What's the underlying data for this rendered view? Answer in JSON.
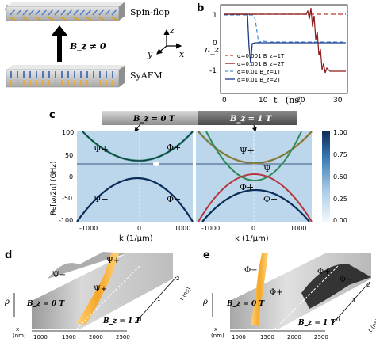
{
  "panel_a": {
    "label": "a",
    "top_layer": "Spin-flop",
    "bottom_layer": "SyAFM",
    "field": "B_z ≠ 0",
    "axes": {
      "z": "z",
      "y": "y",
      "x": "x"
    }
  },
  "panel_b": {
    "label": "b",
    "ylabel": "n_z",
    "xlabel": "t   (ns)",
    "yticks": [
      "1",
      "0",
      "-1"
    ],
    "xticks": [
      "0",
      "10",
      "20",
      "30"
    ],
    "legend": [
      {
        "label": "α=0.001  B_z=1T",
        "color": "#c0392b",
        "dash": "6 3"
      },
      {
        "label": "α=0.001  B_z=2T",
        "color": "#8b1a1a",
        "dash": ""
      },
      {
        "label": "α=0.01   B_z=1T",
        "color": "#4a90d9",
        "dash": "6 3"
      },
      {
        "label": "α=0.01   B_z=2T",
        "color": "#1f3c88",
        "dash": ""
      }
    ]
  },
  "panel_c": {
    "label": "c",
    "header_left": "B_z = 0 T",
    "header_right": "B_z = 1 T",
    "ylabel": "Re[ω/2π] (GHz)",
    "xlabel": "k (1/μm)",
    "yticks": [
      "100",
      "50",
      "0",
      "-50",
      "-100"
    ],
    "xticks": [
      "-1000",
      "0",
      "1000"
    ],
    "colorbar_ticks": [
      "1.00",
      "0.75",
      "0.50",
      "0.25",
      "0.00"
    ],
    "left_labels": {
      "psi_plus": "Ψ+",
      "phi_plus": "Φ+",
      "psi_minus": "Ψ−",
      "phi_minus": "Φ−"
    },
    "right_labels": {
      "psi_plus": "Ψ+",
      "psi_minus": "Ψ−",
      "phi_plus": "Φ+",
      "phi_minus": "Φ−"
    }
  },
  "panel_d": {
    "label": "d",
    "ylabel": "ρ",
    "xlabel": "x\n(nm)",
    "xticks": [
      "1000",
      "1500",
      "2000",
      "2500"
    ],
    "tlabel": "t (ns)",
    "tticks": [
      "0",
      "1",
      "2"
    ],
    "region_left": "B_z = 0 T",
    "region_right": "B_z = 1 T",
    "labels": {
      "psi_minus": "Ψ−",
      "psi_plus_top": "Ψ+",
      "psi_plus": "Ψ+"
    }
  },
  "panel_e": {
    "label": "e",
    "ylabel": "ρ",
    "xlabel": "x\n(nm)",
    "xticks": [
      "1000",
      "1500",
      "2000",
      "2500"
    ],
    "tlabel": "t (ns)",
    "tticks": [
      "0",
      "1",
      "2"
    ],
    "region_left": "B_z = 0 T",
    "region_right": "B_z = 1 T",
    "labels": {
      "phi_minus": "Φ−",
      "phi_plus_1": "Φ+",
      "phi_plus_2": "Φ+",
      "phi_minus_2": "Φ−"
    }
  },
  "colors": {
    "orange": "#f5a623",
    "map_bg": "#bcd6ec",
    "dark_blue": "#0b2e59",
    "green": "#2e8b57",
    "red": "#b5363b"
  }
}
